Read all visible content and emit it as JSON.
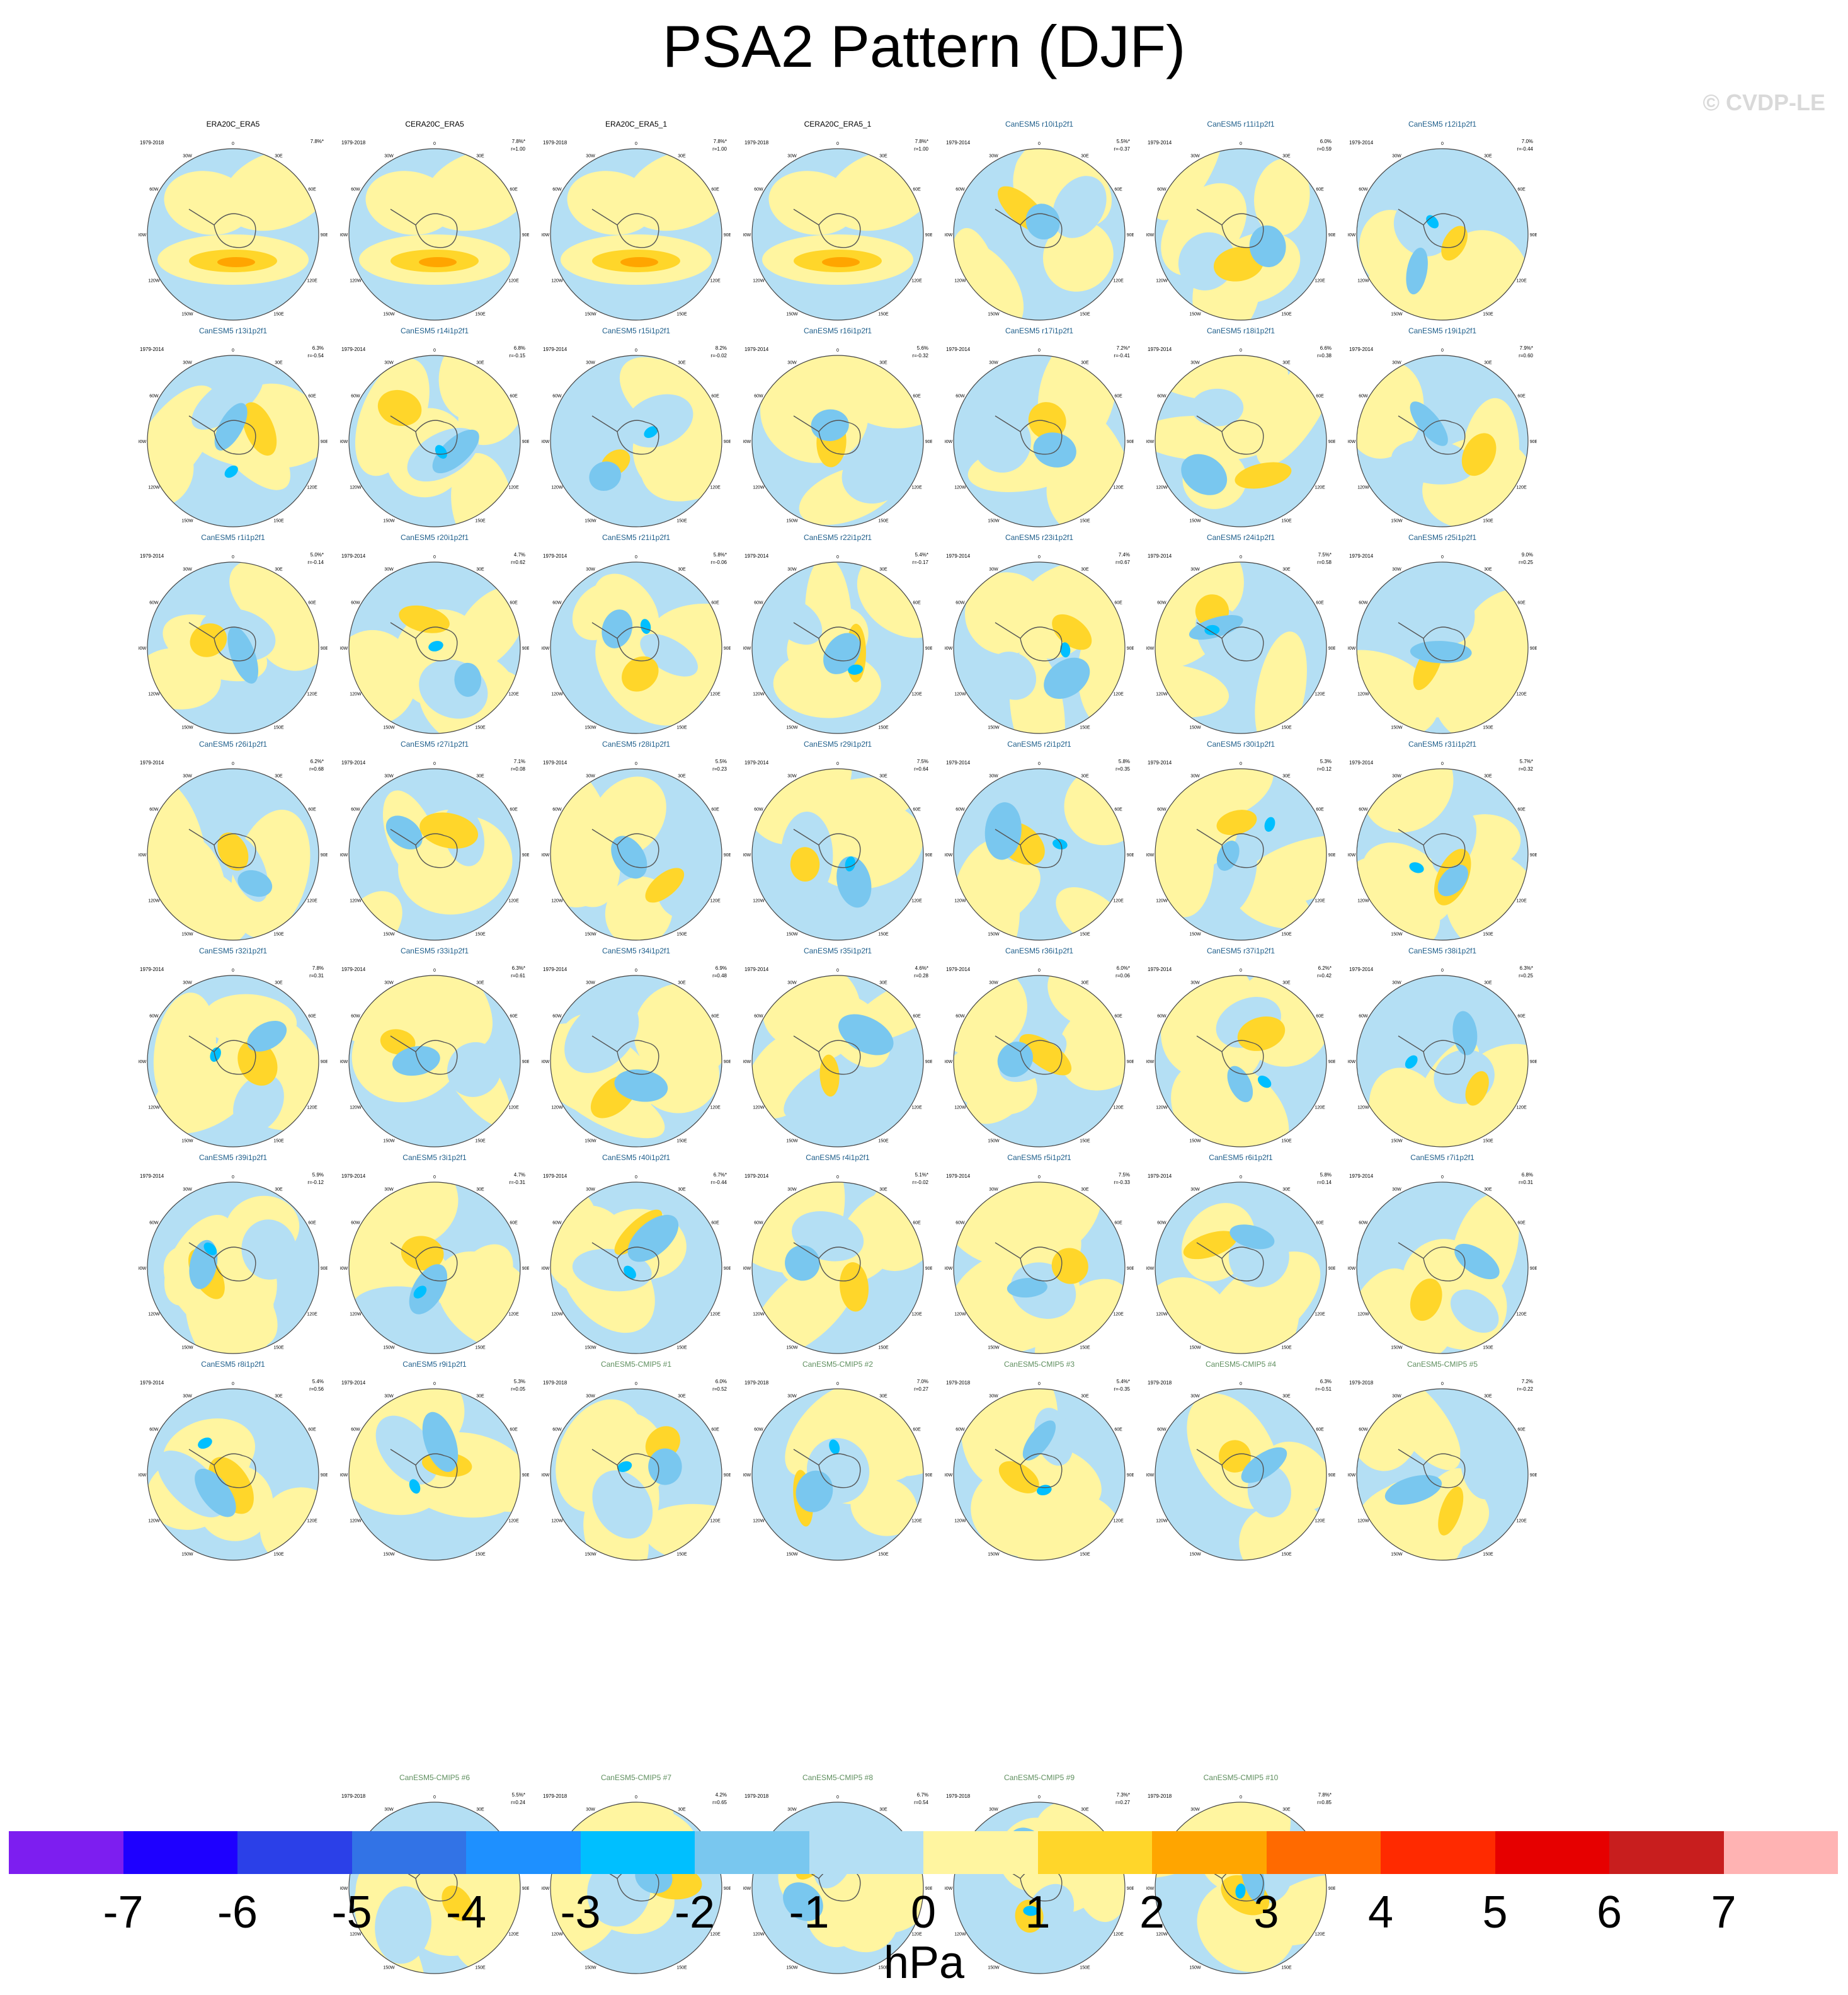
{
  "title": "PSA2 Pattern (DJF)",
  "watermark": "© CVDP-LE",
  "colorbar": {
    "units": "hPa",
    "ticks": [
      "-7",
      "-6",
      "-5",
      "-4",
      "-3",
      "-2",
      "-1",
      "0",
      "1",
      "2",
      "3",
      "4",
      "5",
      "6",
      "7"
    ],
    "colors": [
      "#7d1ef0",
      "#1e00ff",
      "#2b40e8",
      "#3273e6",
      "#1e90ff",
      "#00bfff",
      "#79c7ef",
      "#b4dff4",
      "#fff5a0",
      "#ffd62a",
      "#ffa500",
      "#ff6a00",
      "#ff2a00",
      "#e60000",
      "#c81e1e",
      "#ffb3b3"
    ]
  },
  "map_labels": {
    "lon": [
      "0",
      "30E",
      "60E",
      "90E",
      "120E",
      "150E",
      "180",
      "150W",
      "120W",
      "90W",
      "60W",
      "30W"
    ]
  },
  "chart_data": {
    "type": "polar-map-grid",
    "variable": "PSA2 Pattern (DJF)",
    "units": "hPa",
    "panels": [
      {
        "title": "ERA20C_ERA5",
        "period": "1979-2018",
        "pct": "7.8%*",
        "r": "",
        "group": "obs"
      },
      {
        "title": "CERA20C_ERA5",
        "period": "1979-2018",
        "pct": "7.8%*",
        "r": "r=1.00",
        "group": "obs"
      },
      {
        "title": "ERA20C_ERA5_1",
        "period": "1979-2018",
        "pct": "7.8%*",
        "r": "r=1.00",
        "group": "obs"
      },
      {
        "title": "CERA20C_ERA5_1",
        "period": "1979-2018",
        "pct": "7.8%*",
        "r": "r=1.00",
        "group": "obs"
      },
      {
        "title": "CanESM5 r10i1p2f1",
        "period": "1979-2014",
        "pct": "5.5%*",
        "r": "r=-0.37",
        "group": "model"
      },
      {
        "title": "CanESM5 r11i1p2f1",
        "period": "1979-2014",
        "pct": "6.0%",
        "r": "r=0.59",
        "group": "model"
      },
      {
        "title": "CanESM5 r12i1p2f1",
        "period": "1979-2014",
        "pct": "7.0%",
        "r": "r=-0.44",
        "group": "model"
      },
      {
        "title": "CanESM5 r13i1p2f1",
        "period": "1979-2014",
        "pct": "6.3%",
        "r": "r=-0.54",
        "group": "model"
      },
      {
        "title": "CanESM5 r14i1p2f1",
        "period": "1979-2014",
        "pct": "6.8%",
        "r": "r=-0.15",
        "group": "model"
      },
      {
        "title": "CanESM5 r15i1p2f1",
        "period": "1979-2014",
        "pct": "8.2%",
        "r": "r=-0.02",
        "group": "model"
      },
      {
        "title": "CanESM5 r16i1p2f1",
        "period": "1979-2014",
        "pct": "5.6%",
        "r": "r=-0.32",
        "group": "model"
      },
      {
        "title": "CanESM5 r17i1p2f1",
        "period": "1979-2014",
        "pct": "7.2%*",
        "r": "r=-0.41",
        "group": "model"
      },
      {
        "title": "CanESM5 r18i1p2f1",
        "period": "1979-2014",
        "pct": "6.6%",
        "r": "r=0.38",
        "group": "model"
      },
      {
        "title": "CanESM5 r19i1p2f1",
        "period": "1979-2014",
        "pct": "7.9%*",
        "r": "r=0.60",
        "group": "model"
      },
      {
        "title": "CanESM5 r1i1p2f1",
        "period": "1979-2014",
        "pct": "5.0%*",
        "r": "r=-0.14",
        "group": "model"
      },
      {
        "title": "CanESM5 r20i1p2f1",
        "period": "1979-2014",
        "pct": "4.7%",
        "r": "r=0.62",
        "group": "model"
      },
      {
        "title": "CanESM5 r21i1p2f1",
        "period": "1979-2014",
        "pct": "5.8%*",
        "r": "r=-0.06",
        "group": "model"
      },
      {
        "title": "CanESM5 r22i1p2f1",
        "period": "1979-2014",
        "pct": "5.4%*",
        "r": "r=-0.17",
        "group": "model"
      },
      {
        "title": "CanESM5 r23i1p2f1",
        "period": "1979-2014",
        "pct": "7.4%",
        "r": "r=0.67",
        "group": "model"
      },
      {
        "title": "CanESM5 r24i1p2f1",
        "period": "1979-2014",
        "pct": "7.5%*",
        "r": "r=0.58",
        "group": "model"
      },
      {
        "title": "CanESM5 r25i1p2f1",
        "period": "1979-2014",
        "pct": "9.0%",
        "r": "r=0.25",
        "group": "model"
      },
      {
        "title": "CanESM5 r26i1p2f1",
        "period": "1979-2014",
        "pct": "6.2%*",
        "r": "r=0.68",
        "group": "model"
      },
      {
        "title": "CanESM5 r27i1p2f1",
        "period": "1979-2014",
        "pct": "7.1%",
        "r": "r=0.08",
        "group": "model"
      },
      {
        "title": "CanESM5 r28i1p2f1",
        "period": "1979-2014",
        "pct": "5.5%",
        "r": "r=0.23",
        "group": "model"
      },
      {
        "title": "CanESM5 r29i1p2f1",
        "period": "1979-2014",
        "pct": "7.5%",
        "r": "r=0.64",
        "group": "model"
      },
      {
        "title": "CanESM5 r2i1p2f1",
        "period": "1979-2014",
        "pct": "5.8%",
        "r": "r=0.35",
        "group": "model"
      },
      {
        "title": "CanESM5 r30i1p2f1",
        "period": "1979-2014",
        "pct": "5.3%",
        "r": "r=0.12",
        "group": "model"
      },
      {
        "title": "CanESM5 r31i1p2f1",
        "period": "1979-2014",
        "pct": "5.7%*",
        "r": "r=0.32",
        "group": "model"
      },
      {
        "title": "CanESM5 r32i1p2f1",
        "period": "1979-2014",
        "pct": "7.8%",
        "r": "r=0.31",
        "group": "model"
      },
      {
        "title": "CanESM5 r33i1p2f1",
        "period": "1979-2014",
        "pct": "6.3%*",
        "r": "r=0.61",
        "group": "model"
      },
      {
        "title": "CanESM5 r34i1p2f1",
        "period": "1979-2014",
        "pct": "6.9%",
        "r": "r=0.48",
        "group": "model"
      },
      {
        "title": "CanESM5 r35i1p2f1",
        "period": "1979-2014",
        "pct": "4.6%*",
        "r": "r=0.28",
        "group": "model"
      },
      {
        "title": "CanESM5 r36i1p2f1",
        "period": "1979-2014",
        "pct": "6.0%*",
        "r": "r=0.06",
        "group": "model"
      },
      {
        "title": "CanESM5 r37i1p2f1",
        "period": "1979-2014",
        "pct": "6.2%*",
        "r": "r=0.42",
        "group": "model"
      },
      {
        "title": "CanESM5 r38i1p2f1",
        "period": "1979-2014",
        "pct": "6.3%*",
        "r": "r=0.25",
        "group": "model"
      },
      {
        "title": "CanESM5 r39i1p2f1",
        "period": "1979-2014",
        "pct": "5.9%",
        "r": "r=-0.12",
        "group": "model"
      },
      {
        "title": "CanESM5 r3i1p2f1",
        "period": "1979-2014",
        "pct": "4.7%",
        "r": "r=-0.31",
        "group": "model"
      },
      {
        "title": "CanESM5 r40i1p2f1",
        "period": "1979-2014",
        "pct": "6.7%*",
        "r": "r=-0.44",
        "group": "model"
      },
      {
        "title": "CanESM5 r4i1p2f1",
        "period": "1979-2014",
        "pct": "5.1%*",
        "r": "r=-0.02",
        "group": "model"
      },
      {
        "title": "CanESM5 r5i1p2f1",
        "period": "1979-2014",
        "pct": "7.5%",
        "r": "r=-0.33",
        "group": "model"
      },
      {
        "title": "CanESM5 r6i1p2f1",
        "period": "1979-2014",
        "pct": "5.8%",
        "r": "r=0.14",
        "group": "model"
      },
      {
        "title": "CanESM5 r7i1p2f1",
        "period": "1979-2014",
        "pct": "6.8%",
        "r": "r=0.31",
        "group": "model"
      },
      {
        "title": "CanESM5 r8i1p2f1",
        "period": "1979-2014",
        "pct": "5.4%",
        "r": "r=0.56",
        "group": "model"
      },
      {
        "title": "CanESM5 r9i1p2f1",
        "period": "1979-2014",
        "pct": "5.3%",
        "r": "r=0.05",
        "group": "model"
      },
      {
        "title": "CanESM5-CMIP5 #1",
        "period": "1979-2018",
        "pct": "6.0%",
        "r": "r=0.52",
        "group": "cmip5"
      },
      {
        "title": "CanESM5-CMIP5 #2",
        "period": "1979-2018",
        "pct": "7.0%",
        "r": "r=0.27",
        "group": "cmip5"
      },
      {
        "title": "CanESM5-CMIP5 #3",
        "period": "1979-2018",
        "pct": "5.4%*",
        "r": "r=-0.35",
        "group": "cmip5"
      },
      {
        "title": "CanESM5-CMIP5 #4",
        "period": "1979-2018",
        "pct": "6.3%",
        "r": "r=-0.51",
        "group": "cmip5"
      },
      {
        "title": "CanESM5-CMIP5 #5",
        "period": "1979-2018",
        "pct": "7.2%",
        "r": "r=-0.22",
        "group": "cmip5"
      },
      {
        "title": "CanESM5-CMIP5 #6",
        "period": "1979-2018",
        "pct": "5.5%*",
        "r": "r=0.24",
        "group": "cmip5"
      },
      {
        "title": "CanESM5-CMIP5 #7",
        "period": "1979-2018",
        "pct": "4.2%",
        "r": "r=0.65",
        "group": "cmip5"
      },
      {
        "title": "CanESM5-CMIP5 #8",
        "period": "1979-2018",
        "pct": "6.7%",
        "r": "r=0.54",
        "group": "cmip5"
      },
      {
        "title": "CanESM5-CMIP5 #9",
        "period": "1979-2018",
        "pct": "7.3%*",
        "r": "r=0.27",
        "group": "cmip5"
      },
      {
        "title": "CanESM5-CMIP5 #10",
        "period": "1979-2018",
        "pct": "7.8%*",
        "r": "r=0.85",
        "group": "cmip5"
      }
    ]
  }
}
